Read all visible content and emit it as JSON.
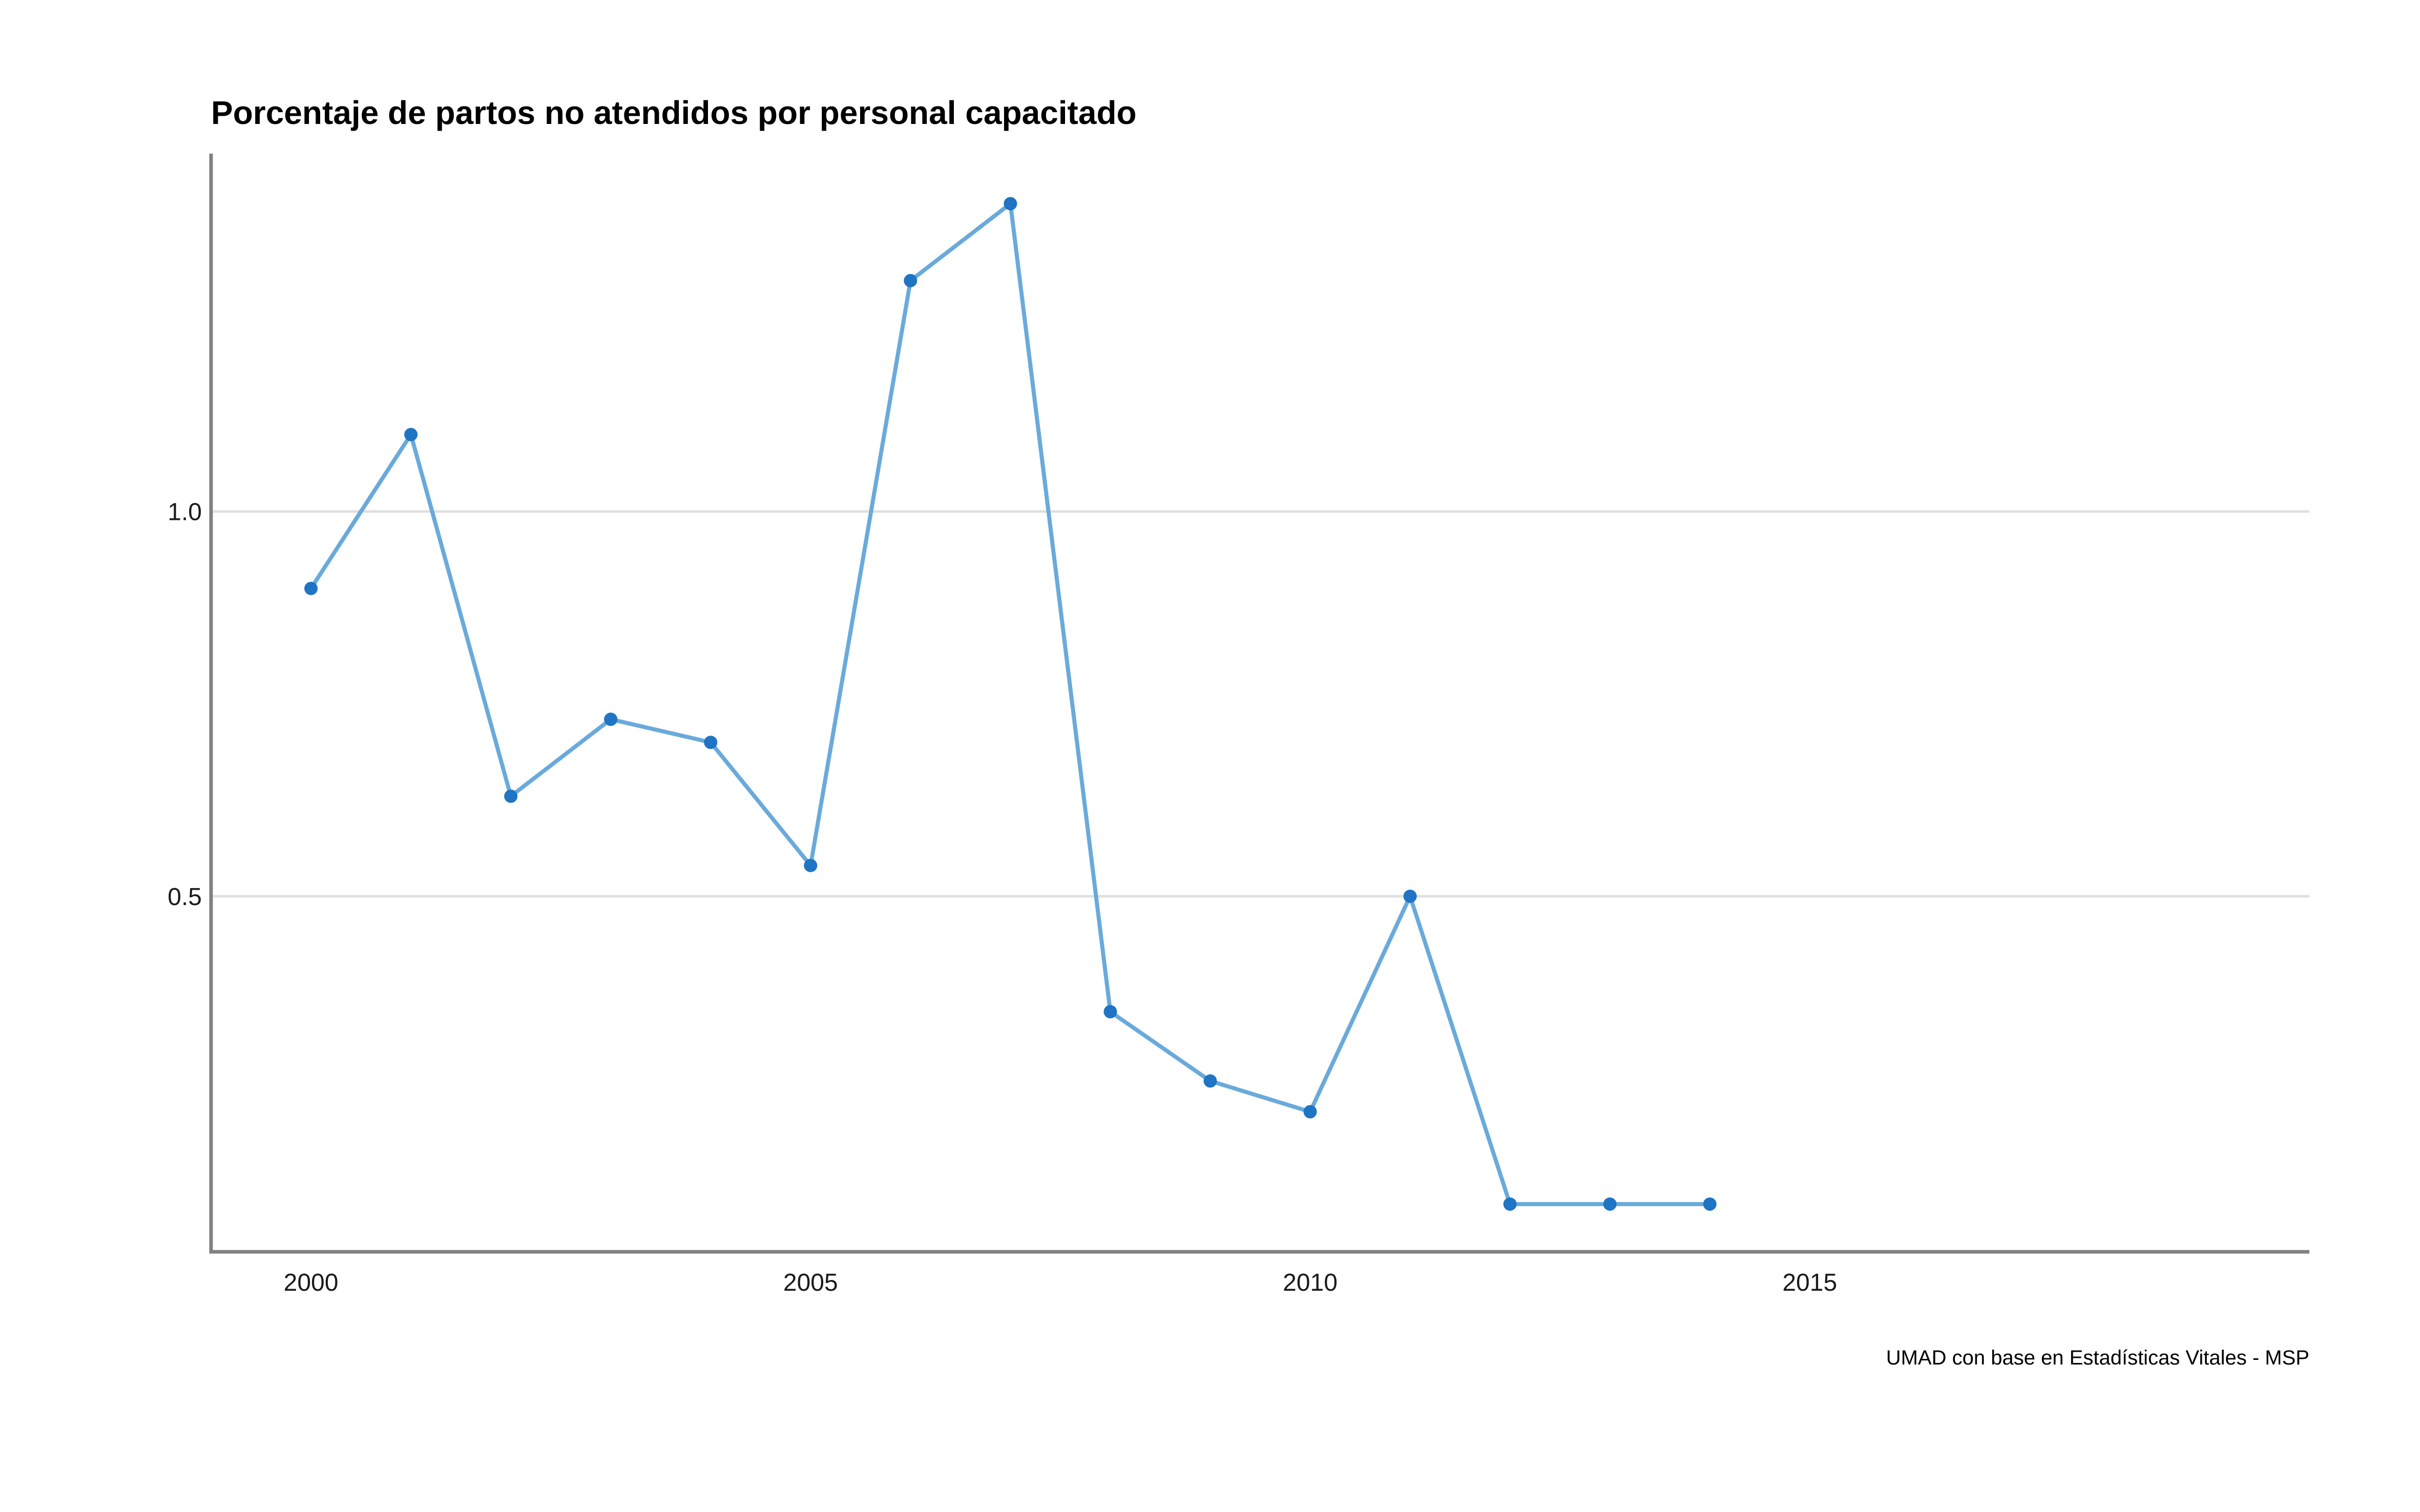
{
  "chart_data": {
    "type": "line",
    "title": "Porcentaje de partos no atendidos por personal capacitado",
    "caption": "UMAD con base en Estadísticas Vitales - MSP",
    "xlabel": "",
    "ylabel": "",
    "x": [
      2000,
      2001,
      2002,
      2003,
      2004,
      2005,
      2006,
      2007,
      2008,
      2009,
      2010,
      2011,
      2012,
      2013,
      2014
    ],
    "series": [
      {
        "values": [
          0.9,
          1.1,
          0.63,
          0.73,
          0.7,
          0.54,
          1.3,
          1.4,
          0.35,
          0.26,
          0.22,
          0.5,
          0.1,
          0.1,
          0.1
        ]
      }
    ],
    "xlim": [
      1999,
      2020
    ],
    "ylim": [
      0.038,
      1.465
    ],
    "xticks": [
      2000,
      2005,
      2010,
      2015
    ],
    "xtick_labels": [
      "2000",
      "2005",
      "2010",
      "2015"
    ],
    "yticks": [
      0.5,
      1.0
    ],
    "ytick_labels": [
      "0.5",
      "1.0"
    ],
    "grid": "horizontal",
    "legend": "none",
    "colors": {
      "line": "#6AAADB",
      "point": "#1F74C4",
      "grid": "#E0E0E0",
      "axis": "#808080"
    }
  }
}
